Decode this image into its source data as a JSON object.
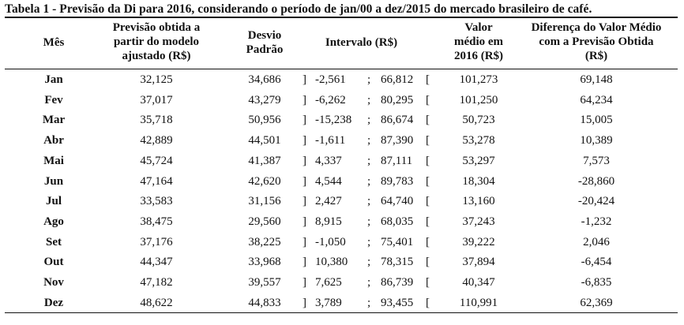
{
  "caption": "Tabela 1 - Previsão da Di para 2016, considerando o período de jan/00 a dez/2015 do mercado brasileiro de café.",
  "headers": {
    "mes": "Mês",
    "previsao": [
      "Previsão obtida a",
      "partir do modelo",
      "ajustado (R$)"
    ],
    "desvio": [
      "Desvio",
      "Padrão"
    ],
    "intervalo": "Intervalo (R$)",
    "valor": [
      "Valor",
      "médio em",
      "2016 (R$)"
    ],
    "diferenca": [
      "Diferença do Valor Médio",
      "com a Previsão Obtida",
      "(R$)"
    ]
  },
  "rows": [
    {
      "mes": "Jan",
      "previsao": "32,125",
      "desvio": "34,686",
      "open": "]",
      "low": "-2,561",
      "sep": ";",
      "high": "66,812",
      "close": "[",
      "valor": "101,273",
      "diferenca": "69,148"
    },
    {
      "mes": "Fev",
      "previsao": "37,017",
      "desvio": "43,279",
      "open": "]",
      "low": "-6,262",
      "sep": ";",
      "high": "80,295",
      "close": "[",
      "valor": "101,250",
      "diferenca": "64,234"
    },
    {
      "mes": "Mar",
      "previsao": "35,718",
      "desvio": "50,956",
      "open": "]",
      "low": "-15,238",
      "sep": ";",
      "high": "86,674",
      "close": "[",
      "valor": "50,723",
      "diferenca": "15,005"
    },
    {
      "mes": "Abr",
      "previsao": "42,889",
      "desvio": "44,501",
      "open": "]",
      "low": "-1,611",
      "sep": ";",
      "high": "87,390",
      "close": "[",
      "valor": "53,278",
      "diferenca": "10,389"
    },
    {
      "mes": "Mai",
      "previsao": "45,724",
      "desvio": "41,387",
      "open": "]",
      "low": "4,337",
      "sep": ";",
      "high": "87,111",
      "close": "[",
      "valor": "53,297",
      "diferenca": "7,573"
    },
    {
      "mes": "Jun",
      "previsao": "47,164",
      "desvio": "42,620",
      "open": "]",
      "low": "4,544",
      "sep": ";",
      "high": "89,783",
      "close": "[",
      "valor": "18,304",
      "diferenca": "-28,860"
    },
    {
      "mes": "Jul",
      "previsao": "33,583",
      "desvio": "31,156",
      "open": "]",
      "low": "2,427",
      "sep": ";",
      "high": "64,740",
      "close": "[",
      "valor": "13,160",
      "diferenca": "-20,424"
    },
    {
      "mes": "Ago",
      "previsao": "38,475",
      "desvio": "29,560",
      "open": "]",
      "low": "8,915",
      "sep": ";",
      "high": "68,035",
      "close": "[",
      "valor": "37,243",
      "diferenca": "-1,232"
    },
    {
      "mes": "Set",
      "previsao": "37,176",
      "desvio": "38,225",
      "open": "]",
      "low": "-1,050",
      "sep": ";",
      "high": "75,401",
      "close": "[",
      "valor": "39,222",
      "diferenca": "2,046"
    },
    {
      "mes": "Out",
      "previsao": "44,347",
      "desvio": "33,968",
      "open": "]",
      "low": "10,380",
      "sep": ";",
      "high": "78,315",
      "close": "[",
      "valor": "37,894",
      "diferenca": "-6,454"
    },
    {
      "mes": "Nov",
      "previsao": "47,182",
      "desvio": "39,557",
      "open": "]",
      "low": "7,625",
      "sep": ";",
      "high": "86,739",
      "close": "[",
      "valor": "40,347",
      "diferenca": "-6,835"
    },
    {
      "mes": "Dez",
      "previsao": "48,622",
      "desvio": "44,833",
      "open": "]",
      "low": "3,789",
      "sep": ";",
      "high": "93,455",
      "close": "[",
      "valor": "110,991",
      "diferenca": "62,369"
    }
  ]
}
